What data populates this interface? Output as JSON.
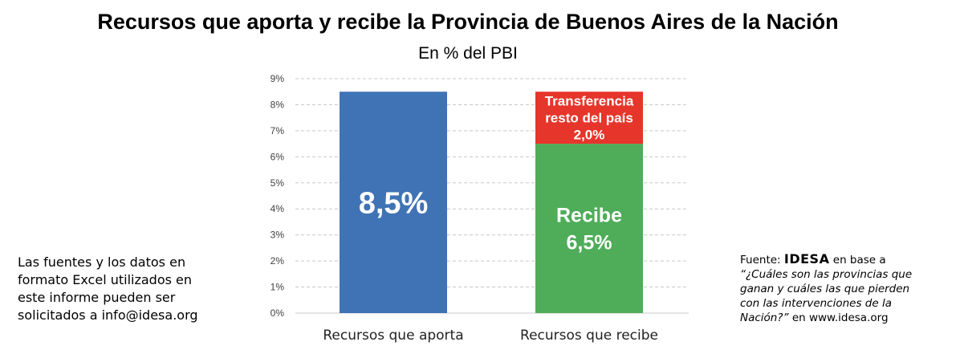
{
  "header": {
    "title": "Recursos que aporta y recibe la Provincia de Buenos Aires de la Nación",
    "subtitle": "En % del PBI"
  },
  "notes": {
    "left_lines": [
      "Las fuentes y los datos en",
      "formato Excel utilizados en",
      "este informe pueden ser",
      "solicitados a info@idesa.org"
    ],
    "source_prefix": "Fuente: ",
    "source_brand": "IDESA",
    "source_after_brand": " en base a",
    "source_italic_lines": [
      "“¿Cuáles son las provincias que",
      "ganan y cuáles las que pierden",
      "con las intervenciones de la",
      "Nación?”"
    ],
    "source_suffix": " en www.idesa.org"
  },
  "colors": {
    "aporta": "#4073b5",
    "recibe": "#4fad59",
    "transferencia": "#e6352b",
    "grid": "#c8c8c8",
    "tick_text": "#404040"
  },
  "chart_data": {
    "type": "bar",
    "stacked": true,
    "categories": [
      "Recursos que aporta",
      "Recursos que recibe"
    ],
    "ylim": [
      0,
      9
    ],
    "yticks": [
      "0%",
      "1%",
      "2%",
      "3%",
      "4%",
      "5%",
      "6%",
      "7%",
      "8%",
      "9%"
    ],
    "grid": true,
    "series": [
      {
        "key": "aporta",
        "values": [
          8.5,
          null
        ],
        "labels": [
          [
            "8,5%"
          ],
          null
        ]
      },
      {
        "key": "recibe",
        "values": [
          null,
          6.5
        ],
        "labels": [
          null,
          [
            "Recibe",
            "6,5%"
          ]
        ]
      },
      {
        "key": "transferencia",
        "values": [
          null,
          2.0
        ],
        "labels": [
          null,
          [
            "Transferencia",
            "resto del país",
            "2,0%"
          ]
        ]
      }
    ]
  }
}
